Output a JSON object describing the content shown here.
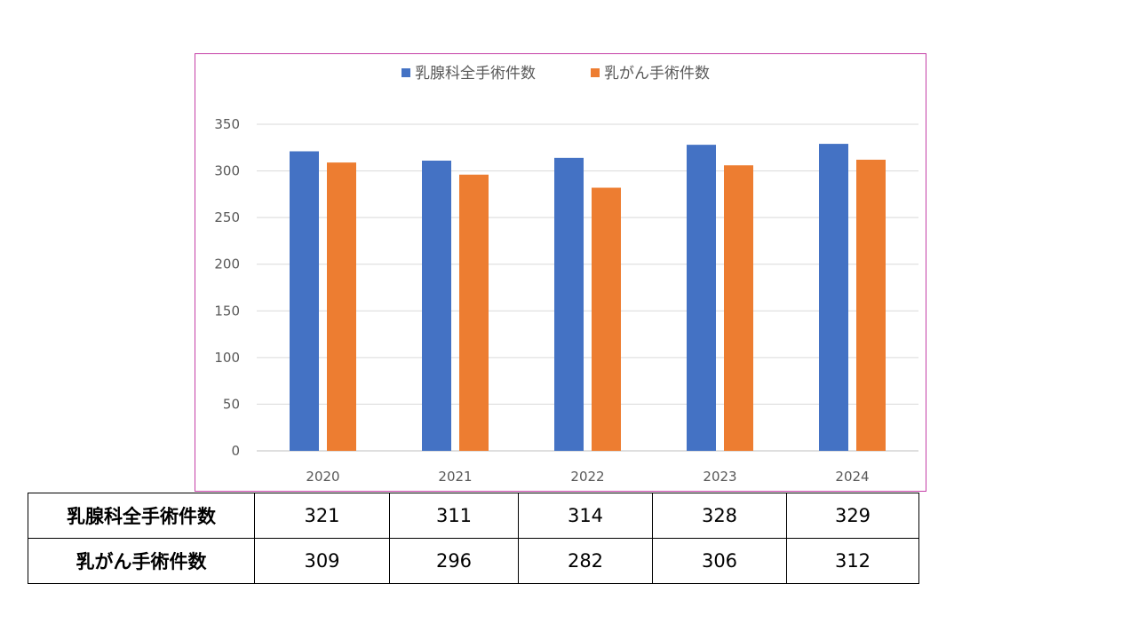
{
  "chart_data": {
    "type": "bar",
    "categories": [
      "2020",
      "2021",
      "2022",
      "2023",
      "2024"
    ],
    "series": [
      {
        "name": "乳腺科全手術件数",
        "values": [
          321,
          311,
          314,
          328,
          329
        ],
        "color": "#4472c4"
      },
      {
        "name": "乳がん手術件数",
        "values": [
          309,
          296,
          282,
          306,
          312
        ],
        "color": "#ed7d31"
      }
    ],
    "title": "",
    "xlabel": "",
    "ylabel": "",
    "ylim": [
      0,
      350
    ],
    "yticks": [
      "0",
      "50",
      "100",
      "150",
      "200",
      "250",
      "300",
      "350"
    ],
    "grid": true,
    "legend_position": "top",
    "frame_color": "#c43ea6"
  },
  "table": {
    "rows": [
      {
        "label": "乳腺科全手術件数",
        "values": [
          "321",
          "311",
          "314",
          "328",
          "329"
        ]
      },
      {
        "label": "乳がん手術件数",
        "values": [
          "309",
          "296",
          "282",
          "306",
          "312"
        ]
      }
    ]
  }
}
